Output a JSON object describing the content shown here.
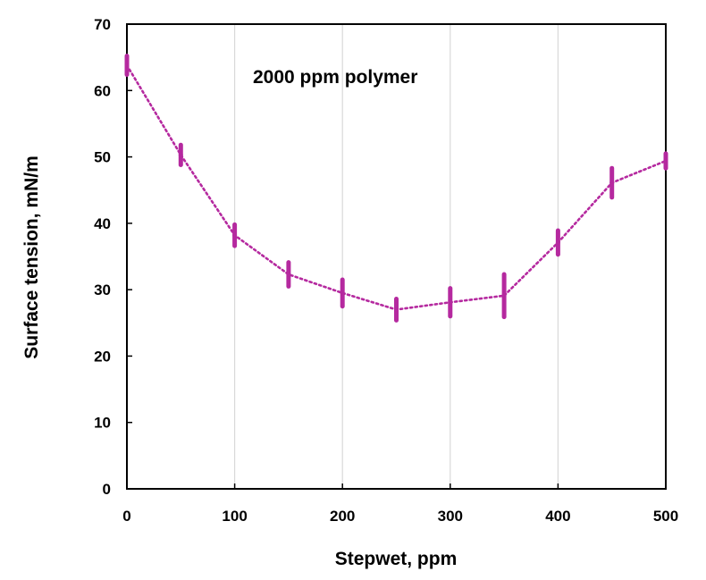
{
  "chart_data": {
    "type": "line",
    "title": "",
    "annotation": "2000 ppm polymer",
    "xlabel": "Stepwet, ppm",
    "ylabel": "Surface tension, mN/m",
    "xlim": [
      0,
      500
    ],
    "ylim": [
      0,
      70
    ],
    "xticks": [
      0,
      100,
      200,
      300,
      400,
      500
    ],
    "yticks": [
      0,
      10,
      20,
      30,
      40,
      50,
      60,
      70
    ],
    "grid": "vertical",
    "series": [
      {
        "x": [
          0,
          50,
          100,
          150,
          200,
          250,
          300,
          350,
          400,
          450,
          500
        ],
        "y": [
          63.8,
          50.3,
          38.2,
          32.3,
          29.5,
          27.0,
          28.1,
          29.1,
          37.1,
          46.1,
          49.4
        ],
        "error": [
          1.4,
          1.5,
          1.6,
          1.8,
          2.0,
          1.6,
          2.1,
          3.2,
          1.8,
          2.2,
          1.1
        ],
        "color": "#b5299f",
        "style": "dotted"
      }
    ]
  }
}
